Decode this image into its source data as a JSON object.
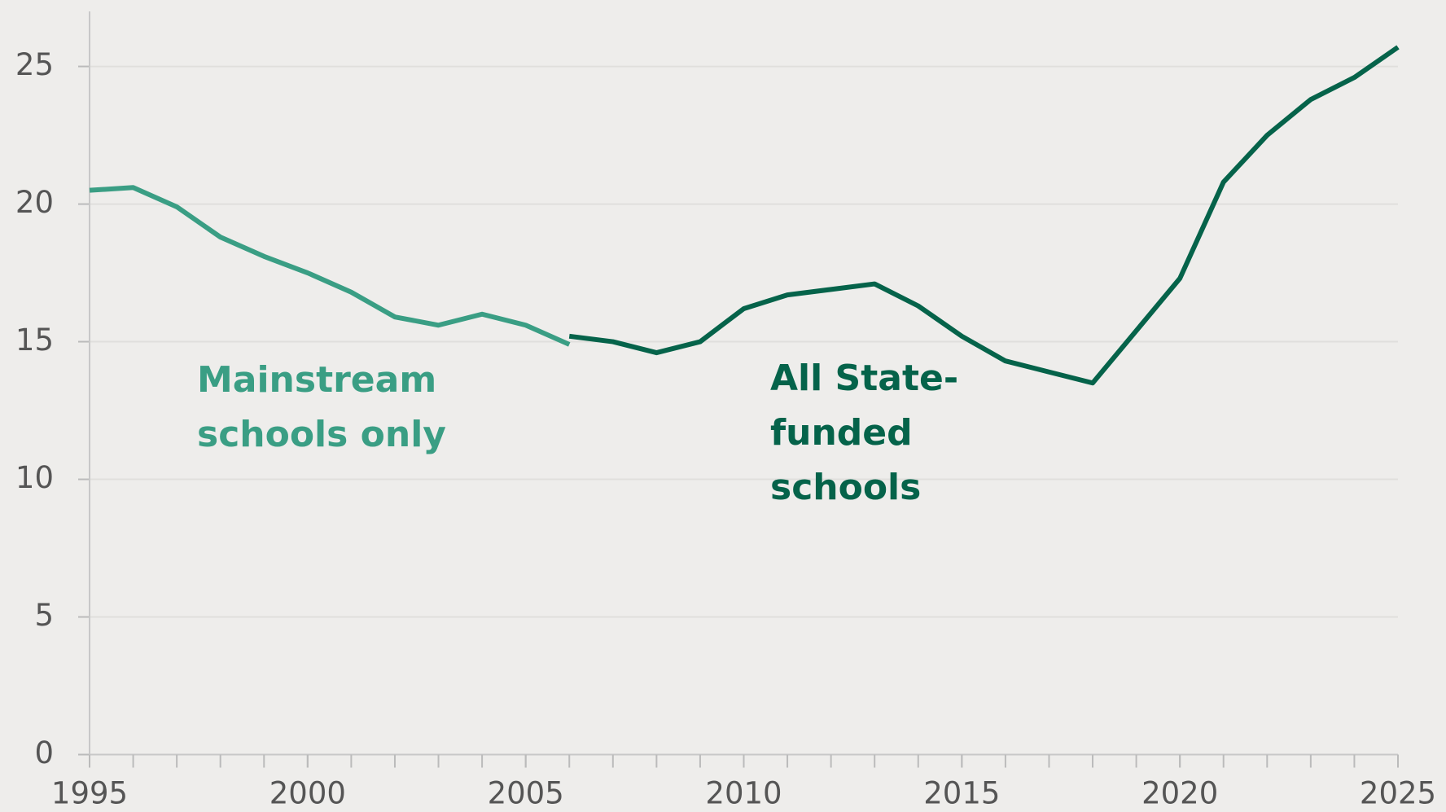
{
  "chart_data": {
    "type": "line",
    "x": [
      1995,
      1996,
      1997,
      1998,
      1999,
      2000,
      2001,
      2002,
      2003,
      2004,
      2005,
      2006,
      2007,
      2008,
      2009,
      2010,
      2011,
      2012,
      2013,
      2014,
      2015,
      2016,
      2017,
      2018,
      2019,
      2020,
      2021,
      2022,
      2023,
      2024,
      2025
    ],
    "series": [
      {
        "name": "Mainstream schools only",
        "color": "#3a9e84",
        "values": [
          20.5,
          20.6,
          19.9,
          18.8,
          18.1,
          17.5,
          16.8,
          15.9,
          15.6,
          16.0,
          15.6,
          14.9,
          null,
          null,
          null,
          null,
          null,
          null,
          null,
          null,
          null,
          null,
          null,
          null,
          null,
          null,
          null,
          null,
          null,
          null,
          null
        ]
      },
      {
        "name": "All State-funded schools",
        "color": "#05634a",
        "values": [
          null,
          null,
          null,
          null,
          null,
          null,
          null,
          null,
          null,
          null,
          null,
          15.2,
          15.0,
          14.6,
          15.0,
          16.2,
          16.7,
          16.9,
          17.1,
          16.3,
          15.2,
          14.3,
          13.9,
          13.5,
          15.4,
          17.3,
          20.8,
          22.5,
          23.8,
          24.6,
          25.7
        ]
      }
    ],
    "annotations": [
      {
        "lines": [
          "Mainstream",
          "schools only"
        ],
        "color": "#3a9e84"
      },
      {
        "lines": [
          "All State-",
          "funded",
          "schools"
        ],
        "color": "#05634a"
      }
    ],
    "xlim": [
      1995,
      2025
    ],
    "xticks": [
      1995,
      2000,
      2005,
      2010,
      2015,
      2020,
      2025
    ],
    "ylim": [
      0,
      27
    ],
    "yticks": [
      0,
      5,
      10,
      15,
      20,
      25
    ],
    "grid": true
  }
}
